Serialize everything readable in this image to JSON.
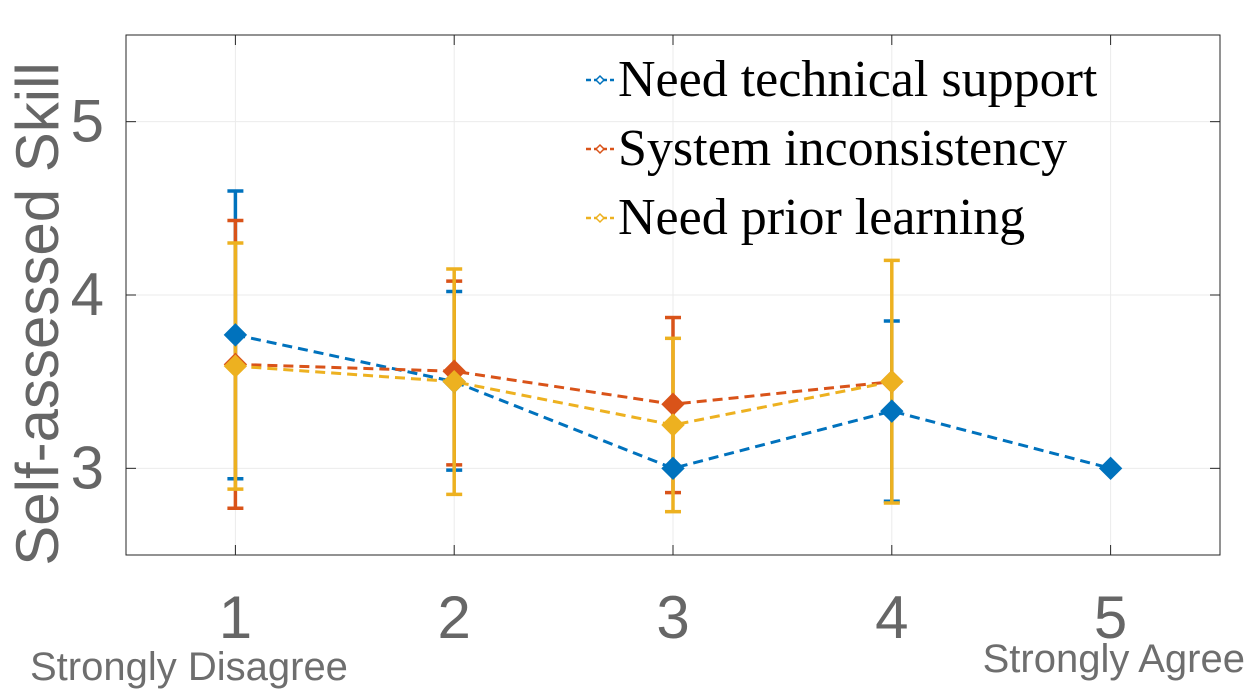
{
  "chart_data": {
    "type": "line",
    "title": "",
    "xlabel": "",
    "ylabel": "Self-assessed Skill",
    "x": [
      1,
      2,
      3,
      4,
      5
    ],
    "x_tick_labels": [
      "1",
      "2",
      "3",
      "4",
      "5"
    ],
    "y_tick_labels": [
      "3",
      "4",
      "5"
    ],
    "y_ticks": [
      3,
      4,
      5
    ],
    "xlim": [
      0.5,
      5.5
    ],
    "ylim": [
      2.5,
      5.5
    ],
    "grid": true,
    "legend_position": "top-right",
    "x_anchor_labels": {
      "left": "Strongly Disagree",
      "right": "Strongly Agree"
    },
    "series": [
      {
        "name": "Need technical support",
        "color": "#0072BD",
        "x": [
          1,
          2,
          3,
          4,
          5
        ],
        "y": [
          3.77,
          3.5,
          3.0,
          3.33,
          3.0
        ],
        "err_low": [
          2.94,
          2.99,
          null,
          2.81,
          null
        ],
        "err_high": [
          4.6,
          4.02,
          null,
          3.85,
          null
        ]
      },
      {
        "name": "System inconsistency",
        "color": "#D95319",
        "x": [
          1,
          2,
          3,
          4
        ],
        "y": [
          3.6,
          3.56,
          3.37,
          3.5
        ],
        "err_low": [
          2.77,
          3.02,
          2.86,
          null
        ],
        "err_high": [
          4.43,
          4.08,
          3.87,
          null
        ]
      },
      {
        "name": "Need prior learning",
        "color": "#EDB120",
        "x": [
          1,
          2,
          3,
          4
        ],
        "y": [
          3.59,
          3.5,
          3.25,
          3.5
        ],
        "err_low": [
          2.88,
          2.85,
          2.75,
          2.8
        ],
        "err_high": [
          4.3,
          4.15,
          3.75,
          4.2
        ]
      }
    ]
  }
}
